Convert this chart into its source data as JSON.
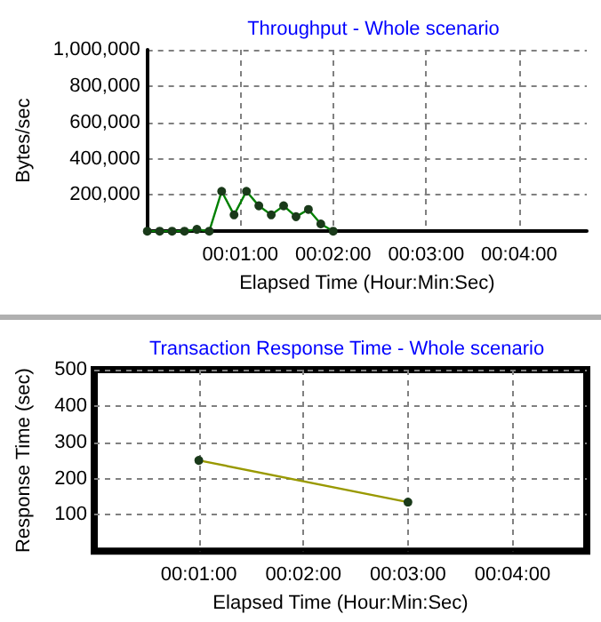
{
  "chart_data": [
    {
      "type": "line",
      "title": "Throughput - Whole scenario",
      "xlabel": "Elapsed Time (Hour:Min:Sec)",
      "ylabel": "Bytes/sec",
      "series": [
        {
          "color": "#008000",
          "x": [
            0,
            0.002222,
            0.004444,
            0.006667,
            0.008889,
            0.011111,
            0.013333,
            0.015556,
            0.017778,
            0.02,
            0.022222,
            0.024444,
            0.026667,
            0.028889,
            0.031111,
            0.033333
          ],
          "values": [
            0,
            0,
            0,
            0,
            10000,
            0,
            220000,
            90000,
            220000,
            140000,
            90000,
            140000,
            80000,
            120000,
            40000,
            0
          ]
        }
      ],
      "xlim": [
        0,
        0.0788
      ],
      "xticks": [
        {
          "value": 0.016667,
          "label": "00:01:00"
        },
        {
          "value": 0.033333,
          "label": "00:02:00"
        },
        {
          "value": 0.05,
          "label": "00:03:00"
        },
        {
          "value": 0.066667,
          "label": "00:04:00"
        }
      ],
      "ylim": [
        0,
        1000000
      ],
      "yticks": [
        {
          "value": 200000,
          "label": "200,000"
        },
        {
          "value": 400000,
          "label": "400,000"
        },
        {
          "value": 600000,
          "label": "600,000"
        },
        {
          "value": 800000,
          "label": "800,000"
        },
        {
          "value": 1000000,
          "label": "1,000,000"
        }
      ],
      "grid": true,
      "marker": "circle",
      "line_style": "solid"
    },
    {
      "type": "line",
      "title": "Transaction Response Time - Whole scenario",
      "xlabel": "Elapsed Time (Hour:Min:Sec)",
      "ylabel": "Response Time (sec)",
      "series": [
        {
          "color": "#999900",
          "x": [
            0.016667,
            0.05
          ],
          "values": [
            250,
            135
          ]
        }
      ],
      "xlim": [
        0,
        0.0785
      ],
      "xticks": [
        {
          "value": 0.016667,
          "label": "00:01:00"
        },
        {
          "value": 0.033333,
          "label": "00:02:00"
        },
        {
          "value": 0.05,
          "label": "00:03:00"
        },
        {
          "value": 0.066667,
          "label": "00:04:00"
        }
      ],
      "ylim": [
        0,
        500
      ],
      "yticks": [
        100,
        200,
        300,
        400,
        500
      ],
      "grid": true,
      "marker": "circle",
      "line_style": "solid"
    }
  ]
}
